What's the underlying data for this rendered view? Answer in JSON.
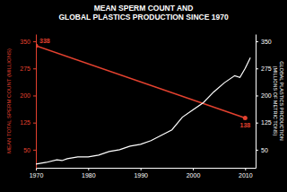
{
  "chart_data": {
    "type": "line",
    "title": [
      "MEAN SPERM COUNT AND",
      "GLOBAL PLASTICS PRODUCTION SINCE 1970"
    ],
    "y_label": "MEAN TOTAL SPERM COUNT (MILLIONS)",
    "y2_label": [
      "GLOBAL PLASTICS PRODUCTION",
      "(MILLIONS OF METRIC TONS)"
    ],
    "xlim": [
      1970,
      2012
    ],
    "xticks": [
      1970,
      1980,
      1990,
      2000,
      2010
    ],
    "ylim": [
      0,
      370
    ],
    "yticks": [
      50,
      125,
      200,
      275,
      350
    ],
    "y2lim": [
      0,
      370
    ],
    "y2ticks": [
      50,
      125,
      200,
      275,
      350
    ],
    "grid": false,
    "series": [
      {
        "color": "#e3412f",
        "marker": "circle",
        "data_labels": true,
        "x": [
          1970,
          2010
        ],
        "values": [
          338,
          138
        ]
      },
      {
        "color": "#ffffff",
        "axis": "y2",
        "x": [
          1970,
          1972,
          1974,
          1975,
          1976,
          1978,
          1980,
          1982,
          1984,
          1986,
          1988,
          1990,
          1992,
          1994,
          1996,
          1998,
          2000,
          2002,
          2004,
          2006,
          2008,
          2009,
          2010,
          2011
        ],
        "values": [
          10,
          15,
          22,
          20,
          25,
          30,
          30,
          35,
          45,
          50,
          60,
          65,
          75,
          90,
          105,
          140,
          160,
          180,
          210,
          235,
          255,
          250,
          275,
          305
        ]
      }
    ]
  }
}
